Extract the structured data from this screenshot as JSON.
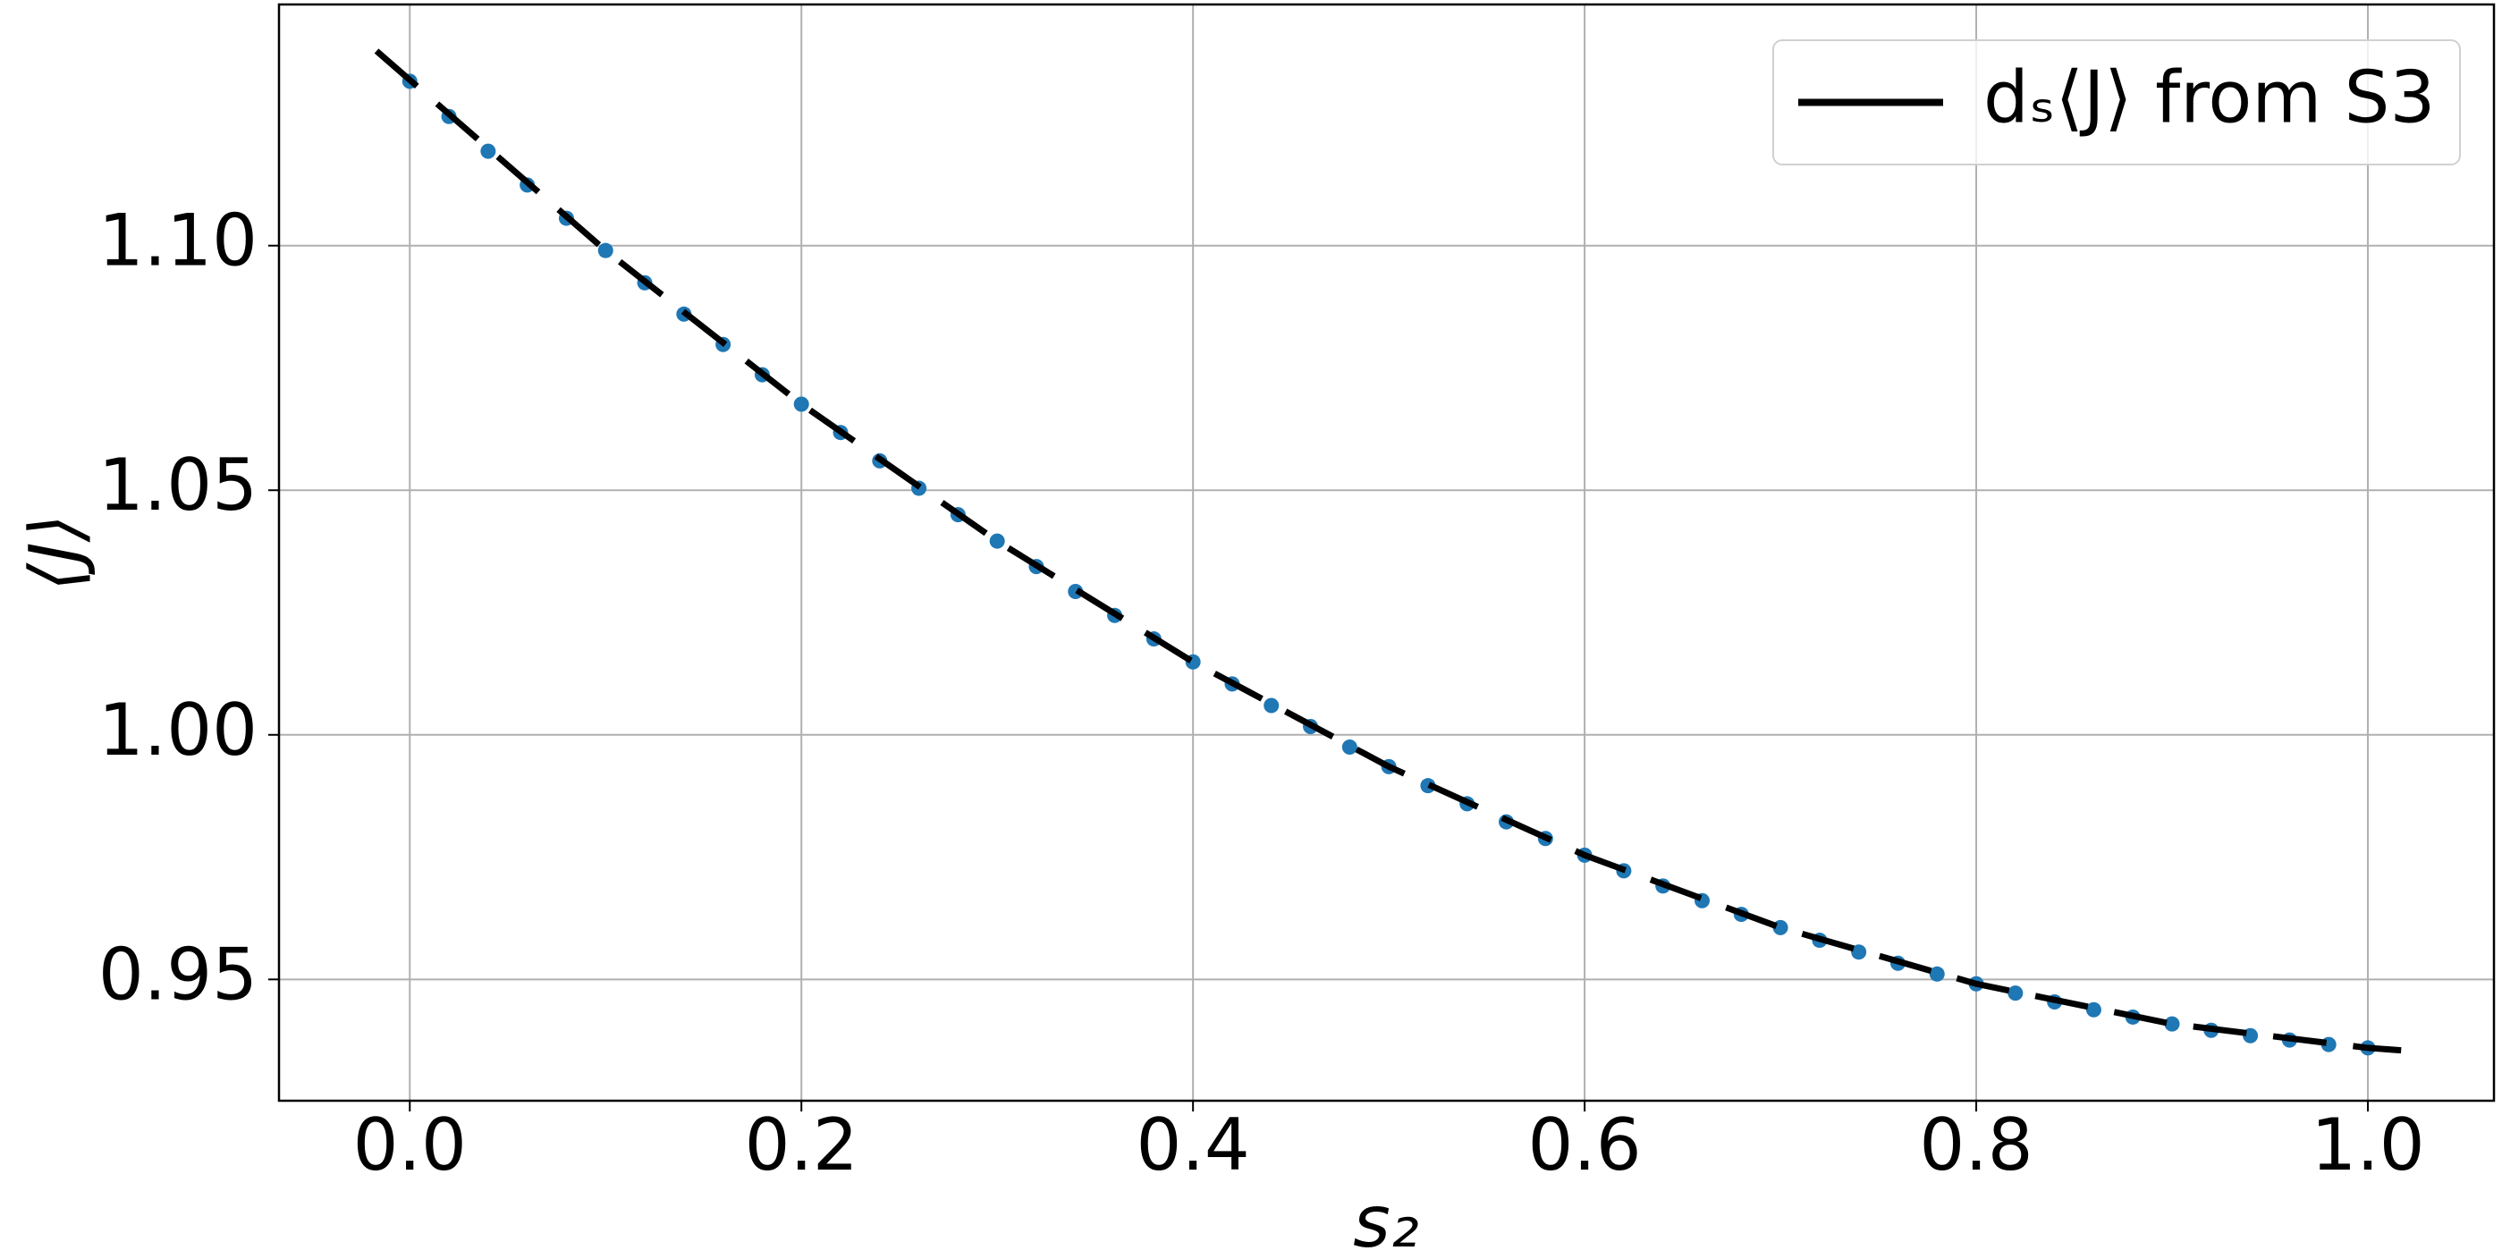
{
  "chart_data": {
    "type": "line",
    "xlabel": "s₂",
    "ylabel": "⟨J⟩",
    "xlim": [
      -0.0668,
      1.0644
    ],
    "ylim": [
      0.9252,
      1.1493
    ],
    "xticks": [
      {
        "value": 0,
        "label": "0.0"
      },
      {
        "value": 0.2,
        "label": "0.2"
      },
      {
        "value": 0.4,
        "label": "0.4"
      },
      {
        "value": 0.6,
        "label": "0.6"
      },
      {
        "value": 0.8,
        "label": "0.8"
      },
      {
        "value": 1,
        "label": "1.0"
      }
    ],
    "yticks": [
      {
        "value": 0.95,
        "label": "0.95"
      },
      {
        "value": 1,
        "label": "1.00"
      },
      {
        "value": 1.05,
        "label": "1.05"
      },
      {
        "value": 1.1,
        "label": "1.10"
      }
    ],
    "grid": true,
    "legend": "upper right",
    "series": [
      {
        "name": "dₛ⟨J⟩ from S3",
        "color": "#000000",
        "linestyle": "dashed",
        "x": [
          -0.017,
          0.1,
          0.2,
          0.3,
          0.4,
          0.5,
          0.6,
          0.7,
          0.8,
          0.9,
          1.0,
          1.017
        ],
        "values": [
          1.1398,
          1.099,
          1.0676,
          1.0396,
          1.0149,
          0.9935,
          0.9754,
          0.9606,
          0.9491,
          0.9409,
          0.936,
          0.9355
        ]
      },
      {
        "color": "#1f77b4",
        "marker": "o",
        "x": [
          0,
          0.02,
          0.04,
          0.06,
          0.08,
          0.1,
          0.12,
          0.14,
          0.16,
          0.18,
          0.2,
          0.22,
          0.24,
          0.26,
          0.28,
          0.3,
          0.32,
          0.34,
          0.36,
          0.38,
          0.4,
          0.42,
          0.44,
          0.46,
          0.48,
          0.5,
          0.52,
          0.54,
          0.56,
          0.58,
          0.6,
          0.62,
          0.64,
          0.66,
          0.68,
          0.7,
          0.72,
          0.74,
          0.76,
          0.78,
          0.8,
          0.82,
          0.84,
          0.86,
          0.88,
          0.9,
          0.92,
          0.94,
          0.96,
          0.98,
          1.0
        ],
        "values": [
          1.1336,
          1.1264,
          1.1193,
          1.1124,
          1.1056,
          1.099,
          1.0924,
          1.086,
          1.0798,
          1.0736,
          1.0676,
          1.0618,
          1.056,
          1.0504,
          1.045,
          1.0396,
          1.0344,
          1.0293,
          1.0244,
          1.0196,
          1.0149,
          1.0104,
          1.006,
          1.0017,
          0.9975,
          0.9935,
          0.9896,
          0.9859,
          0.9822,
          0.9788,
          0.9754,
          0.9722,
          0.9691,
          0.9661,
          0.9633,
          0.9606,
          0.958,
          0.9556,
          0.9533,
          0.9511,
          0.9491,
          0.9472,
          0.9454,
          0.9438,
          0.9423,
          0.9409,
          0.9396,
          0.9385,
          0.9376,
          0.9367,
          0.936
        ]
      }
    ]
  }
}
